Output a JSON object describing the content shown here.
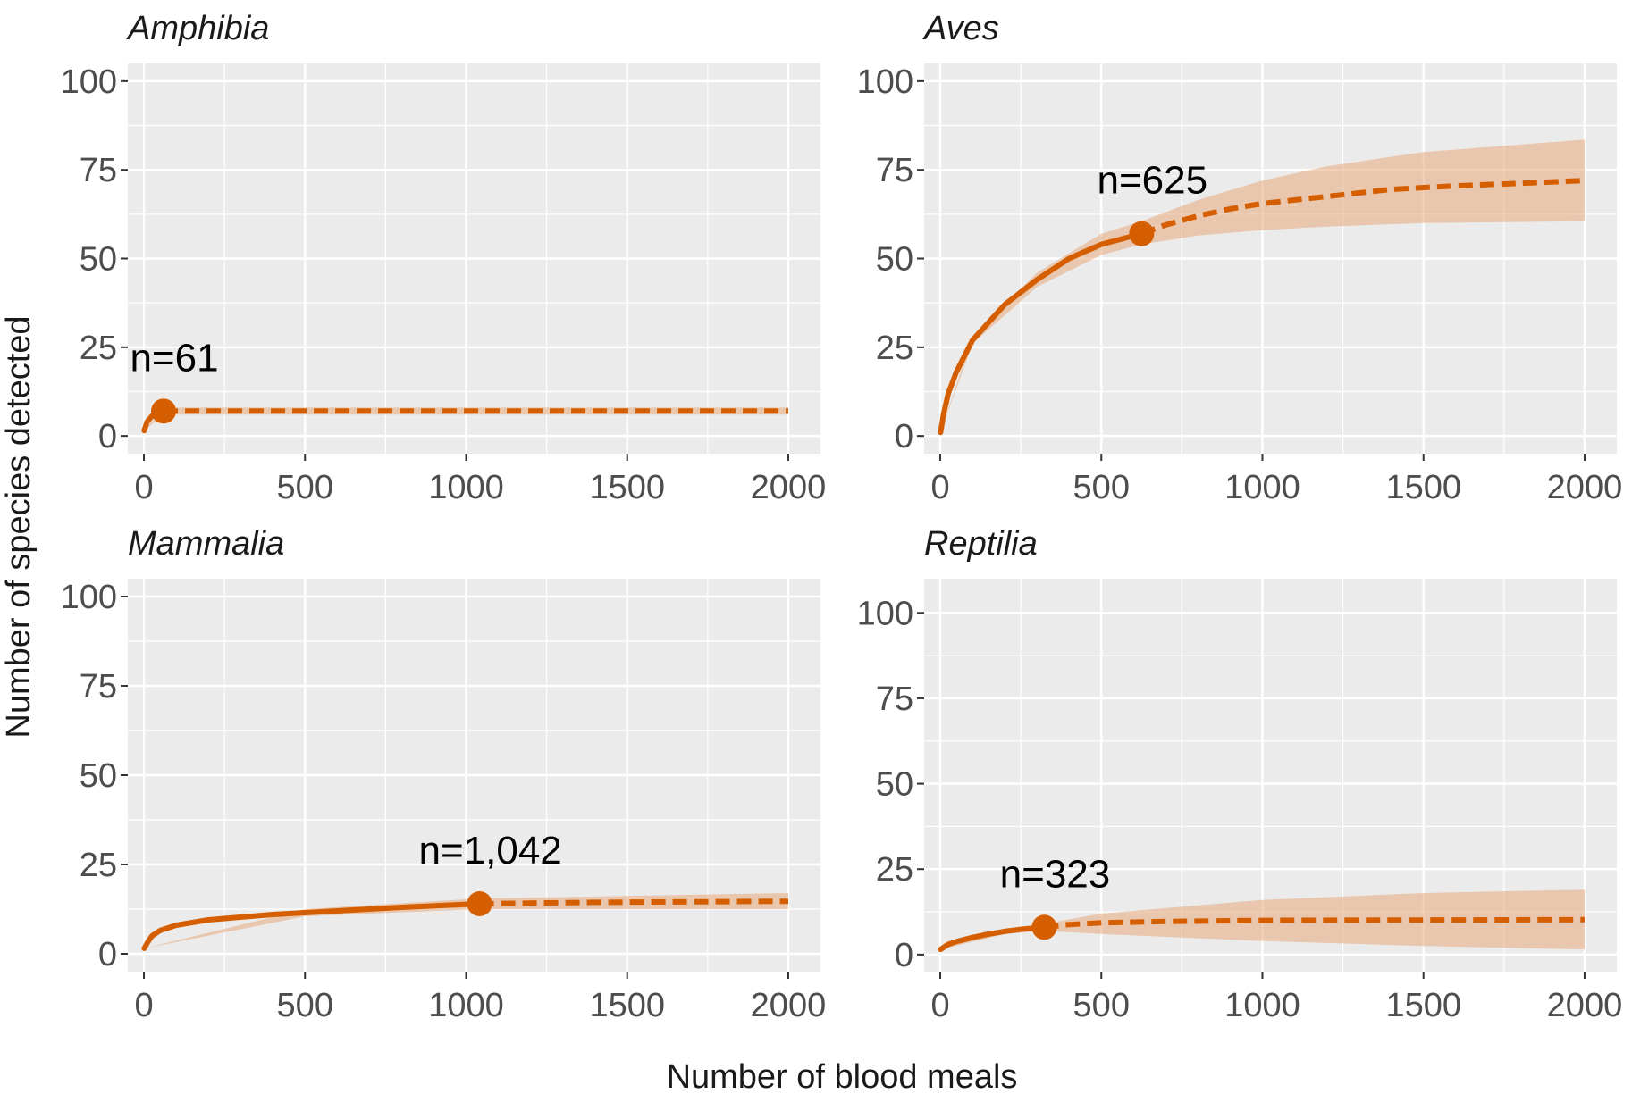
{
  "colors": {
    "line": "#d55e00",
    "ribbon": "#e8a87c",
    "panel_bg": "#ebebeb",
    "grid": "#ffffff",
    "tick": "#333333"
  },
  "chart_data": {
    "type": "line",
    "description_style": "faceted rarefaction/extrapolation curves",
    "xlabel": "Number of blood meals",
    "ylabel": "Number of species detected",
    "x_ticks": [
      "0",
      "500",
      "1000",
      "1500",
      "2000"
    ],
    "y_ticks": [
      "0",
      "25",
      "50",
      "75",
      "100"
    ],
    "panels": [
      {
        "name": "Amphibia",
        "n_label": "n=61",
        "observed_n": 61,
        "observed_species": 7,
        "xlim": [
          -50,
          2100
        ],
        "ylim": [
          -5,
          105
        ],
        "y_upper_break": 100,
        "interp": [
          [
            1,
            1.5
          ],
          [
            10,
            4
          ],
          [
            25,
            5.6
          ],
          [
            40,
            6.4
          ],
          [
            61,
            7
          ]
        ],
        "extrap": [
          [
            61,
            7
          ],
          [
            200,
            7
          ],
          [
            500,
            7
          ],
          [
            1000,
            7
          ],
          [
            1500,
            7
          ],
          [
            2000,
            7
          ]
        ],
        "ribbon_lower": [
          [
            1,
            1.5
          ],
          [
            61,
            6
          ],
          [
            500,
            6
          ],
          [
            1000,
            6
          ],
          [
            1500,
            6
          ],
          [
            2000,
            6
          ]
        ],
        "ribbon_upper": [
          [
            1,
            1.5
          ],
          [
            61,
            8
          ],
          [
            500,
            8
          ],
          [
            1000,
            8
          ],
          [
            1500,
            8
          ],
          [
            2000,
            8
          ]
        ]
      },
      {
        "name": "Aves",
        "n_label": "n=625",
        "observed_n": 625,
        "observed_species": 57,
        "xlim": [
          -50,
          2100
        ],
        "ylim": [
          -5,
          105
        ],
        "y_upper_break": 100,
        "interp": [
          [
            1,
            1
          ],
          [
            10,
            6
          ],
          [
            25,
            12
          ],
          [
            50,
            18
          ],
          [
            100,
            27
          ],
          [
            200,
            37
          ],
          [
            300,
            44
          ],
          [
            400,
            50
          ],
          [
            500,
            54
          ],
          [
            625,
            57
          ]
        ],
        "extrap": [
          [
            625,
            57
          ],
          [
            700,
            59.5
          ],
          [
            800,
            62
          ],
          [
            900,
            64
          ],
          [
            1000,
            65.5
          ],
          [
            1200,
            67.5
          ],
          [
            1400,
            69.5
          ],
          [
            1600,
            70.5
          ],
          [
            1800,
            71.2
          ],
          [
            2000,
            72
          ]
        ],
        "ribbon_lower": [
          [
            1,
            1
          ],
          [
            100,
            26
          ],
          [
            300,
            42
          ],
          [
            500,
            51
          ],
          [
            625,
            54
          ],
          [
            800,
            56.5
          ],
          [
            1000,
            58
          ],
          [
            1200,
            59
          ],
          [
            1500,
            60
          ],
          [
            2000,
            60.5
          ]
        ],
        "ribbon_upper": [
          [
            1,
            1
          ],
          [
            100,
            28
          ],
          [
            300,
            46
          ],
          [
            500,
            57
          ],
          [
            625,
            60.5
          ],
          [
            800,
            66.5
          ],
          [
            1000,
            72
          ],
          [
            1200,
            76
          ],
          [
            1500,
            80
          ],
          [
            2000,
            83.5
          ]
        ]
      },
      {
        "name": "Mammalia",
        "n_label": "n=1,042",
        "observed_n": 1042,
        "observed_species": 14,
        "xlim": [
          -50,
          2100
        ],
        "ylim": [
          -5,
          105
        ],
        "y_upper_break": 100,
        "interp": [
          [
            1,
            1.5
          ],
          [
            10,
            3
          ],
          [
            25,
            5
          ],
          [
            50,
            6.5
          ],
          [
            100,
            8
          ],
          [
            200,
            9.5
          ],
          [
            400,
            11
          ],
          [
            600,
            12
          ],
          [
            800,
            13
          ],
          [
            1042,
            14
          ]
        ],
        "extrap": [
          [
            1042,
            14
          ],
          [
            1200,
            14.2
          ],
          [
            1400,
            14.4
          ],
          [
            1600,
            14.5
          ],
          [
            1800,
            14.6
          ],
          [
            2000,
            14.7
          ]
        ],
        "ribbon_lower": [
          [
            1,
            1.5
          ],
          [
            500,
            10.5
          ],
          [
            1042,
            12.5
          ],
          [
            1500,
            12.5
          ],
          [
            2000,
            12.5
          ]
        ],
        "ribbon_upper": [
          [
            1,
            1.5
          ],
          [
            500,
            12.5
          ],
          [
            1042,
            15.5
          ],
          [
            1500,
            16.2
          ],
          [
            2000,
            17
          ]
        ]
      },
      {
        "name": "Reptilia",
        "n_label": "n=323",
        "observed_n": 323,
        "observed_species": 8,
        "xlim": [
          -50,
          2100
        ],
        "ylim": [
          -5,
          110
        ],
        "y_upper_break": 100,
        "interp": [
          [
            1,
            1.5
          ],
          [
            25,
            3
          ],
          [
            50,
            3.8
          ],
          [
            100,
            5
          ],
          [
            150,
            6
          ],
          [
            200,
            6.8
          ],
          [
            250,
            7.4
          ],
          [
            323,
            8
          ]
        ],
        "extrap": [
          [
            323,
            8
          ],
          [
            400,
            8.8
          ],
          [
            500,
            9.3
          ],
          [
            700,
            9.7
          ],
          [
            1000,
            10
          ],
          [
            1500,
            10.1
          ],
          [
            2000,
            10.2
          ]
        ],
        "ribbon_lower": [
          [
            1,
            1.5
          ],
          [
            200,
            6
          ],
          [
            323,
            7
          ],
          [
            500,
            6
          ],
          [
            1000,
            4
          ],
          [
            1500,
            2.5
          ],
          [
            2000,
            1.5
          ]
        ],
        "ribbon_upper": [
          [
            1,
            1.5
          ],
          [
            200,
            7.5
          ],
          [
            323,
            9
          ],
          [
            500,
            12
          ],
          [
            1000,
            16
          ],
          [
            1500,
            18
          ],
          [
            2000,
            19
          ]
        ]
      }
    ]
  }
}
